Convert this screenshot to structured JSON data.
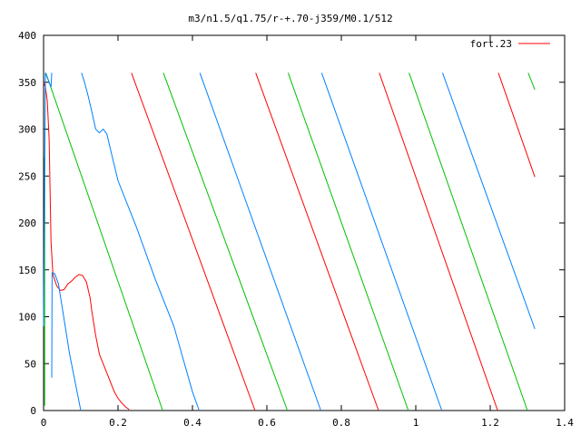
{
  "chart_data": {
    "type": "line",
    "title": "m3/n1.5/q1.75/r-+.70-j359/M0.1/512",
    "xlabel": "",
    "ylabel": "",
    "xlim": [
      0,
      1.4
    ],
    "ylim": [
      0,
      400
    ],
    "x_ticks": [
      "0",
      "0.2",
      "0.4",
      "0.6",
      "0.8",
      "1",
      "1.2",
      "1.4"
    ],
    "x_tick_values": [
      0,
      0.2,
      0.4,
      0.6,
      0.8,
      1.0,
      1.2,
      1.4
    ],
    "y_ticks": [
      "0",
      "50",
      "100",
      "150",
      "200",
      "250",
      "300",
      "350",
      "400"
    ],
    "y_tick_values": [
      0,
      50,
      100,
      150,
      200,
      250,
      300,
      350,
      400
    ],
    "grid": false,
    "legend": {
      "entry": "fort.23",
      "color": "#ff0000",
      "placement": "top-right"
    },
    "colors": {
      "red": "#ff0000",
      "green": "#00c000",
      "blue": "#0080ff"
    },
    "series": [
      {
        "color": "#ff0000",
        "segments": [
          [
            [
              0.0,
              350
            ],
            [
              0.005,
              345
            ],
            [
              0.01,
              330
            ],
            [
              0.015,
              290
            ],
            [
              0.02,
              180
            ],
            [
              0.025,
              145
            ],
            [
              0.035,
              133
            ],
            [
              0.045,
              128
            ],
            [
              0.055,
              129
            ],
            [
              0.065,
              135
            ],
            [
              0.075,
              138
            ],
            [
              0.085,
              142
            ],
            [
              0.095,
              145
            ],
            [
              0.105,
              144
            ],
            [
              0.115,
              137
            ],
            [
              0.125,
              120
            ],
            [
              0.13,
              105
            ],
            [
              0.14,
              80
            ],
            [
              0.15,
              60
            ],
            [
              0.16,
              50
            ],
            [
              0.17,
              40
            ],
            [
              0.18,
              30
            ],
            [
              0.19,
              20
            ],
            [
              0.2,
              13
            ],
            [
              0.21,
              8
            ],
            [
              0.22,
              4
            ],
            [
              0.23,
              1
            ]
          ],
          [
            [
              0.236,
              360
            ],
            [
              0.568,
              0
            ]
          ],
          [
            [
              0.57,
              360
            ],
            [
              0.9,
              0
            ]
          ],
          [
            [
              0.902,
              360
            ],
            [
              1.22,
              0
            ]
          ],
          [
            [
              1.222,
              360
            ],
            [
              1.32,
              249
            ]
          ]
        ]
      },
      {
        "color": "#00c000",
        "segments": [
          [
            [
              0.003,
              5
            ],
            [
              0.003,
              270
            ]
          ],
          [
            [
              0.006,
              360
            ],
            [
              0.32,
              0
            ]
          ],
          [
            [
              0.322,
              360
            ],
            [
              0.655,
              0
            ]
          ],
          [
            [
              0.657,
              360
            ],
            [
              0.98,
              0
            ]
          ],
          [
            [
              0.982,
              360
            ],
            [
              1.3,
              0
            ]
          ],
          [
            [
              1.302,
              360
            ],
            [
              1.32,
              342
            ]
          ]
        ]
      },
      {
        "color": "#0080ff",
        "segments": [
          [
            [
              0.0,
              90
            ],
            [
              0.005,
              360
            ],
            [
              0.01,
              355
            ],
            [
              0.015,
              350
            ],
            [
              0.02,
              345
            ],
            [
              0.022,
              360
            ]
          ],
          [
            [
              0.022,
              35
            ],
            [
              0.023,
              147
            ],
            [
              0.03,
              146
            ],
            [
              0.04,
              135
            ],
            [
              0.05,
              110
            ],
            [
              0.06,
              85
            ],
            [
              0.07,
              60
            ],
            [
              0.08,
              40
            ],
            [
              0.09,
              20
            ],
            [
              0.1,
              0
            ]
          ],
          [
            [
              0.102,
              360
            ],
            [
              0.11,
              350
            ],
            [
              0.12,
              335
            ],
            [
              0.13,
              318
            ],
            [
              0.14,
              300
            ],
            [
              0.15,
              296
            ],
            [
              0.16,
              300
            ],
            [
              0.17,
              295
            ],
            [
              0.18,
              278
            ],
            [
              0.2,
              245
            ],
            [
              0.25,
              195
            ],
            [
              0.3,
              140
            ],
            [
              0.35,
              90
            ],
            [
              0.4,
              20
            ],
            [
              0.418,
              0
            ]
          ],
          [
            [
              0.42,
              360
            ],
            [
              0.745,
              0
            ]
          ],
          [
            [
              0.747,
              360
            ],
            [
              1.07,
              0
            ]
          ],
          [
            [
              1.072,
              360
            ],
            [
              1.32,
              87
            ]
          ]
        ]
      }
    ]
  }
}
